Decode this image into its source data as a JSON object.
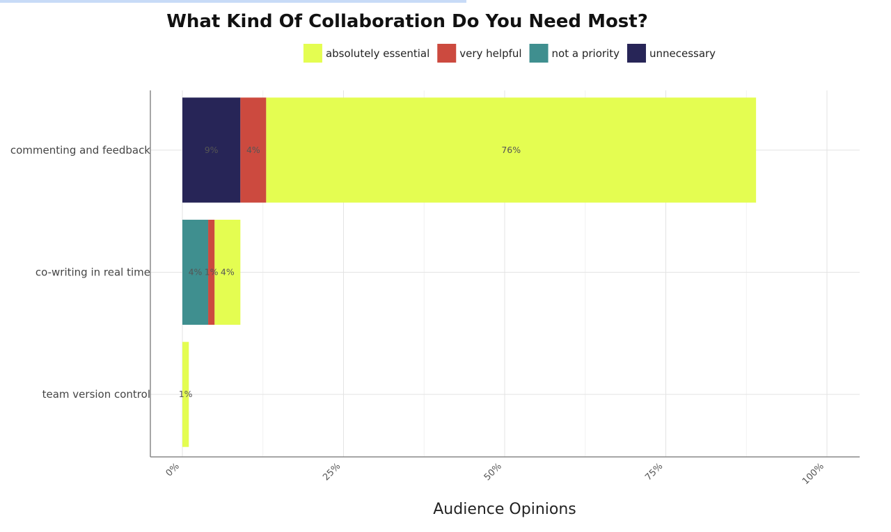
{
  "chart_data": {
    "type": "bar",
    "orientation": "horizontal",
    "stacked": true,
    "title": "What Kind Of Collaboration Do You Need Most?",
    "xlabel": "Audience Opinions",
    "ylabel": "",
    "xlim": [
      0,
      105
    ],
    "xticks": [
      0,
      25,
      50,
      75,
      100
    ],
    "xtick_labels": [
      "0%",
      "25%",
      "50%",
      "75%",
      "100%"
    ],
    "grid": true,
    "legend_position": "top",
    "categories": [
      "commenting and feedback",
      "co-writing in real time",
      "team version control"
    ],
    "stack_order": [
      "unnecessary",
      "not a priority",
      "very helpful",
      "absolutely essential"
    ],
    "series": [
      {
        "name": "absolutely essential",
        "color": "#e4fd51",
        "values": [
          76,
          4,
          1
        ],
        "labels": [
          "76%",
          "4%",
          "1%"
        ]
      },
      {
        "name": "very helpful",
        "color": "#cc4a3f",
        "values": [
          4,
          1,
          0
        ],
        "labels": [
          "4%",
          "1%",
          ""
        ]
      },
      {
        "name": "not a priority",
        "color": "#3f8f8f",
        "values": [
          0,
          4,
          0
        ],
        "labels": [
          "",
          "4%",
          ""
        ]
      },
      {
        "name": "unnecessary",
        "color": "#272557",
        "values": [
          9,
          0,
          0
        ],
        "labels": [
          "9%",
          "",
          ""
        ]
      }
    ]
  }
}
